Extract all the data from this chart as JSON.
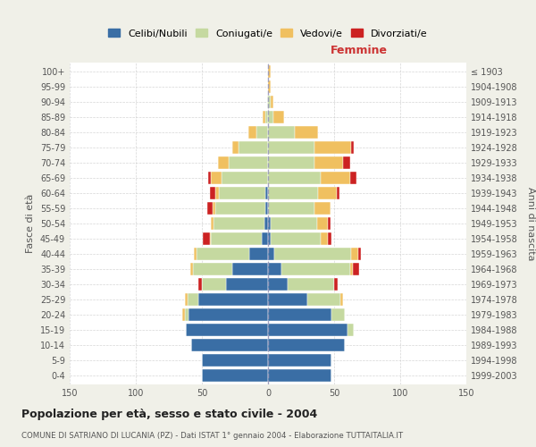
{
  "age_groups": [
    "0-4",
    "5-9",
    "10-14",
    "15-19",
    "20-24",
    "25-29",
    "30-34",
    "35-39",
    "40-44",
    "45-49",
    "50-54",
    "55-59",
    "60-64",
    "65-69",
    "70-74",
    "75-79",
    "80-84",
    "85-89",
    "90-94",
    "95-99",
    "100+"
  ],
  "birth_years": [
    "1999-2003",
    "1994-1998",
    "1989-1993",
    "1984-1988",
    "1979-1983",
    "1974-1978",
    "1969-1973",
    "1964-1968",
    "1959-1963",
    "1954-1958",
    "1949-1953",
    "1944-1948",
    "1939-1943",
    "1934-1938",
    "1929-1933",
    "1924-1928",
    "1919-1923",
    "1914-1918",
    "1909-1913",
    "1904-1908",
    "≤ 1903"
  ],
  "male_celibi": [
    50,
    50,
    58,
    62,
    60,
    53,
    32,
    27,
    14,
    5,
    3,
    2,
    2,
    0,
    0,
    0,
    0,
    0,
    0,
    0,
    0
  ],
  "male_coniugati": [
    0,
    0,
    0,
    0,
    3,
    8,
    18,
    30,
    40,
    38,
    38,
    38,
    35,
    35,
    30,
    22,
    9,
    2,
    1,
    0,
    0
  ],
  "male_vedovi": [
    0,
    0,
    0,
    0,
    2,
    2,
    0,
    2,
    2,
    1,
    2,
    2,
    3,
    8,
    8,
    5,
    6,
    2,
    0,
    0,
    0
  ],
  "male_divorziati": [
    0,
    0,
    0,
    0,
    0,
    0,
    3,
    0,
    0,
    5,
    0,
    4,
    4,
    2,
    0,
    0,
    0,
    0,
    0,
    0,
    0
  ],
  "female_celibi": [
    48,
    48,
    58,
    60,
    48,
    30,
    15,
    10,
    5,
    2,
    2,
    0,
    0,
    0,
    0,
    0,
    0,
    0,
    0,
    0,
    0
  ],
  "female_coniugati": [
    0,
    0,
    0,
    5,
    10,
    25,
    35,
    52,
    58,
    38,
    35,
    35,
    38,
    40,
    35,
    35,
    20,
    4,
    2,
    0,
    0
  ],
  "female_vedovi": [
    0,
    0,
    0,
    0,
    0,
    2,
    0,
    2,
    5,
    5,
    8,
    12,
    14,
    22,
    22,
    28,
    18,
    8,
    2,
    2,
    2
  ],
  "female_divorziati": [
    0,
    0,
    0,
    0,
    0,
    0,
    3,
    5,
    2,
    3,
    2,
    0,
    2,
    5,
    5,
    2,
    0,
    0,
    0,
    0,
    0
  ],
  "colors": {
    "celibi": "#3a6ea5",
    "coniugati": "#c5d9a0",
    "vedovi": "#f0c060",
    "divorziati": "#cc2222"
  },
  "title": "Popolazione per età, sesso e stato civile - 2004",
  "subtitle": "COMUNE DI SATRIANO DI LUCANIA (PZ) - Dati ISTAT 1° gennaio 2004 - Elaborazione TUTTAITALIA.IT",
  "xlabel_female": "Femmine",
  "ylabel_left": "Fasce di età",
  "ylabel_right": "Anni di nascita",
  "legend_labels": [
    "Celibi/Nubili",
    "Coniugati/e",
    "Vedovi/e",
    "Divorziati/e"
  ],
  "xlim": 150,
  "background_color": "#f0f0e8",
  "bar_background": "#ffffff"
}
